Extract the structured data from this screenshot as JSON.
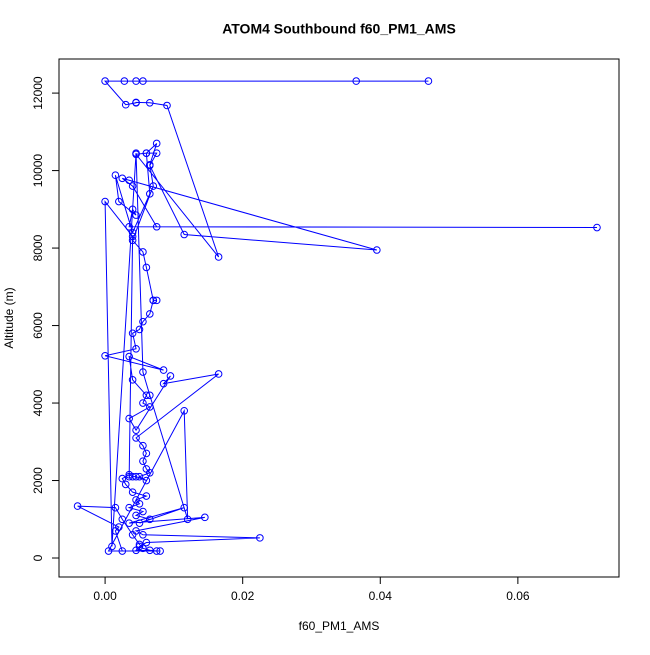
{
  "chart_data": {
    "type": "line",
    "title": "ATOM4 Southbound f60_PM1_AMS",
    "x_label": "f60_PM1_AMS",
    "y_label": "Altitude (m)",
    "xlim": [
      -0.0067,
      0.0747
    ],
    "ylim": [
      -490,
      12880
    ],
    "xticks": [
      {
        "value": 0,
        "label": "0.00"
      },
      {
        "value": 0.02,
        "label": "0.02"
      },
      {
        "value": 0.04,
        "label": "0.04"
      },
      {
        "value": 0.06,
        "label": "0.06"
      }
    ],
    "yticks": [
      0,
      2000,
      4000,
      6000,
      8000,
      10000,
      12000
    ],
    "markers": true,
    "series": [
      {
        "color": "#0000ff",
        "x": [
          0.047,
          0.0365,
          0.0055,
          0.0045,
          0.0028,
          0.0,
          0.003,
          0.0045,
          0.0045,
          0.0065,
          0.009,
          0.0165,
          0.0045,
          0.006,
          0.0075,
          0.0065,
          0.0115,
          0.0395,
          0.0035,
          0.0025,
          0.004,
          0.0075,
          0.0715,
          0.0035,
          0.004,
          0.0045,
          0.002,
          0.0015,
          0.004,
          0.0065,
          0.006,
          0.0075,
          0.0065,
          0.007,
          0.004,
          0.0055,
          0.006,
          0.007,
          0.0075,
          0.007,
          0.0065,
          0.0055,
          0.005,
          0.004,
          0.0045,
          0.0,
          0.0085,
          0.0035,
          0.004,
          0.006,
          0.0055,
          0.0065,
          0.0035,
          0.0045,
          0.0095,
          0.0085,
          0.0165,
          0.0045,
          0.0055,
          0.006,
          0.0055,
          0.006,
          0.0065,
          0.005,
          0.006,
          0.0045,
          0.004,
          0.0035,
          0.0025,
          0.003,
          0.004,
          0.006,
          0.0045,
          0.005,
          0.0035,
          0.0055,
          0.0045,
          0.0065,
          0.005,
          0.0115,
          0.0035,
          0.0145,
          0.0045,
          0.0055,
          0.0225,
          0.006,
          0.005,
          0.0045,
          0.008,
          0.0025,
          0.0015,
          0.002,
          -0.004,
          0.0015,
          0.0025,
          0.004,
          0.005,
          0.0055,
          0.0065,
          0.0075,
          0.0005,
          0.0115,
          0.012,
          0.0065,
          0.0055,
          0.0045,
          0.001,
          0.0,
          0.004,
          0.0035
        ],
        "values": [
          12310,
          12310,
          12310,
          12310,
          12310,
          12310,
          11700,
          11750,
          11760,
          11750,
          11680,
          7770,
          10420,
          10450,
          10450,
          10130,
          8350,
          7950,
          9750,
          9800,
          9600,
          8550,
          8530,
          8550,
          9000,
          8850,
          9200,
          9880,
          8400,
          9400,
          10450,
          10700,
          10150,
          9600,
          8200,
          7900,
          7500,
          6650,
          6650,
          6650,
          6300,
          6100,
          5900,
          5800,
          5400,
          5220,
          4850,
          5200,
          4600,
          4200,
          4000,
          3900,
          3600,
          3300,
          4700,
          4500,
          4750,
          3100,
          2900,
          2700,
          2500,
          2300,
          2200,
          2100,
          2000,
          2100,
          2100,
          2150,
          2050,
          1900,
          1700,
          1600,
          1500,
          1400,
          1300,
          1200,
          1100,
          1000,
          900,
          1300,
          900,
          1050,
          700,
          600,
          520,
          400,
          300,
          200,
          180,
          180,
          700,
          800,
          1340,
          1300,
          1000,
          600,
          350,
          250,
          200,
          180,
          180,
          3800,
          1000,
          4200,
          4800,
          10450,
          300,
          9200,
          8300,
          2100
        ]
      }
    ]
  }
}
